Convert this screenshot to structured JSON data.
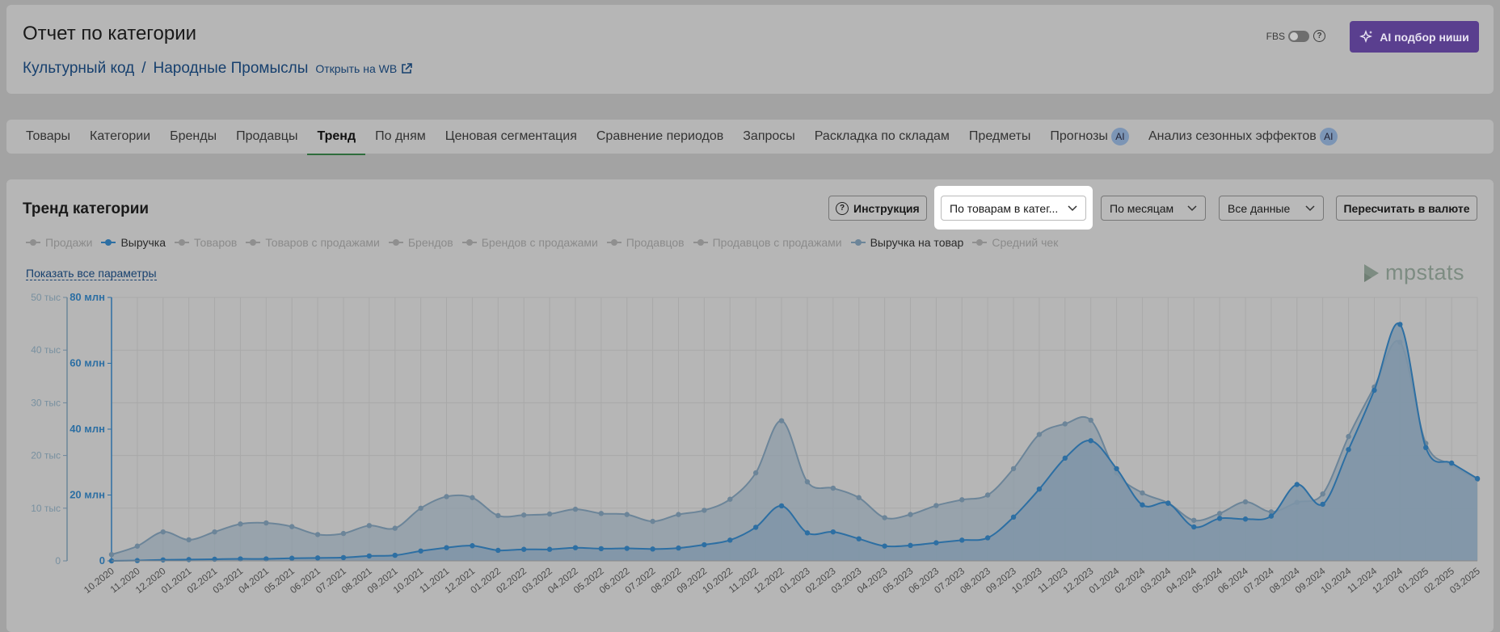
{
  "header": {
    "title": "Отчет по категории",
    "breadcrumb": [
      "Культурный код",
      "Народные Промыслы"
    ],
    "breadcrumb_sep": "/",
    "open_wb_label": "Открыть на WB",
    "fbs_label": "FBS",
    "fbs_enabled": false,
    "ai_button_label": "AI подбор ниши",
    "ai_button_color": "#5a3f8f"
  },
  "tabs": [
    {
      "label": "Товары"
    },
    {
      "label": "Категории"
    },
    {
      "label": "Бренды"
    },
    {
      "label": "Продавцы"
    },
    {
      "label": "Тренд",
      "active": true
    },
    {
      "label": "По дням"
    },
    {
      "label": "Ценовая сегментация"
    },
    {
      "label": "Сравнение периодов"
    },
    {
      "label": "Запросы"
    },
    {
      "label": "Раскладка по складам"
    },
    {
      "label": "Предметы"
    },
    {
      "label": "Прогнозы",
      "badge": "AI"
    },
    {
      "label": "Анализ сезонных эффектов",
      "badge": "AI"
    }
  ],
  "main": {
    "title": "Тренд категории",
    "instruction_label": "Инструкция",
    "grouping_select": "По товарам в катег...",
    "period_select": "По месяцам",
    "range_select": "Все данные",
    "recalc_label": "Пересчитать в валюте",
    "show_all_label": "Показать все параметры",
    "brand_text": "mpstats",
    "legend": [
      {
        "label": "Продажи",
        "active": false
      },
      {
        "label": "Выручка",
        "active": true,
        "color": "#2d6fa3"
      },
      {
        "label": "Товаров",
        "active": false
      },
      {
        "label": "Товаров с продажами",
        "active": false
      },
      {
        "label": "Брендов",
        "active": false
      },
      {
        "label": "Брендов с продажами",
        "active": false
      },
      {
        "label": "Продавцов",
        "active": false
      },
      {
        "label": "Продавцов с продажами",
        "active": false
      },
      {
        "label": "Выручка на товар",
        "active": true,
        "color": "#6c8599"
      },
      {
        "label": "Средний чек",
        "active": false
      }
    ]
  },
  "chart_data": {
    "type": "area",
    "x": [
      "10.2020",
      "11.2020",
      "12.2020",
      "01.2021",
      "02.2021",
      "03.2021",
      "04.2021",
      "05.2021",
      "06.2021",
      "07.2021",
      "08.2021",
      "09.2021",
      "10.2021",
      "11.2021",
      "12.2021",
      "01.2022",
      "02.2022",
      "03.2022",
      "04.2022",
      "05.2022",
      "06.2022",
      "07.2022",
      "08.2022",
      "09.2022",
      "10.2022",
      "11.2022",
      "12.2022",
      "01.2023",
      "02.2023",
      "03.2023",
      "04.2023",
      "05.2023",
      "06.2023",
      "07.2023",
      "08.2023",
      "09.2023",
      "10.2023",
      "11.2023",
      "12.2023",
      "01.2024",
      "02.2024",
      "03.2024",
      "04.2024",
      "05.2024",
      "06.2024",
      "07.2024",
      "08.2024",
      "09.2024",
      "10.2024",
      "11.2024",
      "12.2024",
      "01.2025",
      "02.2025",
      "03.2025"
    ],
    "axes": [
      {
        "id": "left",
        "ticks": [
          "0",
          "10 тыс",
          "20 тыс",
          "30 тыс",
          "40 тыс",
          "50 тыс"
        ],
        "range": [
          0,
          50000
        ],
        "color": "#6c8599"
      },
      {
        "id": "right",
        "ticks": [
          "0",
          "20 млн",
          "40 млн",
          "60 млн",
          "80 млн"
        ],
        "range": [
          0,
          80000000
        ],
        "color": "#2d6fa3"
      }
    ],
    "series": [
      {
        "name": "Выручка на товар",
        "axis": "left",
        "color": "#6c8599",
        "values": [
          1200,
          2800,
          5500,
          4000,
          5500,
          7000,
          7200,
          6500,
          5000,
          5200,
          6700,
          6200,
          10000,
          12200,
          12000,
          8600,
          8700,
          8900,
          9800,
          9000,
          8800,
          7500,
          8800,
          9600,
          11700,
          16700,
          26600,
          15000,
          13800,
          12000,
          8200,
          8800,
          10500,
          11600,
          12500,
          17500,
          24000,
          26000,
          26700,
          16700,
          12900,
          11000,
          7700,
          9000,
          11200,
          9300,
          11100,
          12700,
          23600,
          33000,
          41500,
          22300,
          18200,
          15500
        ]
      },
      {
        "name": "Выручка",
        "axis": "right",
        "color": "#2d6fa3",
        "values": [
          0,
          100000,
          300000,
          400000,
          500000,
          600000,
          600000,
          800000,
          900000,
          1000000,
          1500000,
          1700000,
          3000000,
          4000000,
          4600000,
          3200000,
          3500000,
          3500000,
          4000000,
          3700000,
          3800000,
          3600000,
          3900000,
          4900000,
          6300000,
          10200000,
          16700000,
          8500000,
          8800000,
          6700000,
          4500000,
          4700000,
          5500000,
          6300000,
          7000000,
          13300000,
          21800000,
          31200000,
          36500000,
          28000000,
          17000000,
          17500000,
          10300000,
          12900000,
          12700000,
          13600000,
          23200000,
          17200000,
          33800000,
          51800000,
          71800000,
          34400000,
          29700000,
          25000000
        ]
      }
    ]
  }
}
